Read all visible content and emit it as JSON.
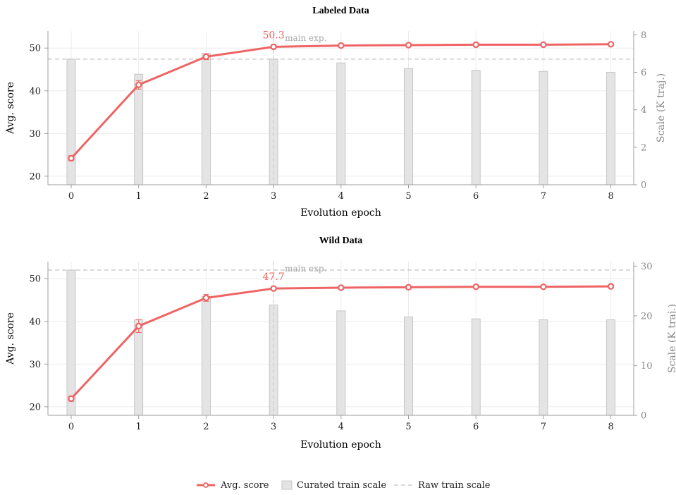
{
  "chart_data": [
    {
      "type": "bar",
      "title": "Labeled Data",
      "xlabel": "Evolution epoch",
      "ylabel": "Avg. score",
      "ylabel_right": "Scale (K traj.)",
      "categories": [
        0,
        1,
        2,
        3,
        4,
        5,
        6,
        7,
        8
      ],
      "ylim": [
        18,
        54
      ],
      "ylim_right": [
        0,
        8.2
      ],
      "yticks": [
        20,
        30,
        40,
        50
      ],
      "yticks_right": [
        0,
        2,
        4,
        6,
        8
      ],
      "series": [
        {
          "name": "Avg. score",
          "kind": "line",
          "axis": "left",
          "values": [
            24.2,
            41.4,
            48.0,
            50.3,
            50.6,
            50.7,
            50.8,
            50.8,
            50.9
          ],
          "errors": [
            0.6,
            1.0,
            0.7,
            0.5,
            0.3,
            0.3,
            0.3,
            0.3,
            0.3
          ]
        },
        {
          "name": "Curated train scale",
          "kind": "bar",
          "axis": "right",
          "values": [
            6.7,
            5.9,
            7.0,
            6.7,
            6.5,
            6.2,
            6.1,
            6.05,
            6.0
          ]
        },
        {
          "name": "Raw train scale",
          "kind": "hline",
          "axis": "right",
          "value": 6.7
        }
      ],
      "annotations": {
        "main_exp_epoch": 3,
        "main_exp_label": "main exp.",
        "peak_label": "50.3"
      },
      "grid": true
    },
    {
      "type": "bar",
      "title": "Wild Data",
      "xlabel": "Evolution epoch",
      "ylabel": "Avg. score",
      "ylabel_right": "Scale (K traj.)",
      "categories": [
        0,
        1,
        2,
        3,
        4,
        5,
        6,
        7,
        8
      ],
      "ylim": [
        18,
        54
      ],
      "ylim_right": [
        0,
        30.9
      ],
      "yticks": [
        20,
        30,
        40,
        50
      ],
      "yticks_right": [
        0,
        10,
        20,
        30
      ],
      "series": [
        {
          "name": "Avg. score",
          "kind": "line",
          "axis": "left",
          "values": [
            21.9,
            38.9,
            45.5,
            47.7,
            47.9,
            48.0,
            48.1,
            48.1,
            48.2
          ],
          "errors": [
            0.6,
            1.5,
            0.8,
            0.4,
            0.3,
            0.3,
            0.3,
            0.3,
            0.3
          ]
        },
        {
          "name": "Curated train scale",
          "kind": "bar",
          "axis": "right",
          "values": [
            29.2,
            19.2,
            23.9,
            22.2,
            21.0,
            19.8,
            19.4,
            19.2,
            19.2
          ]
        },
        {
          "name": "Raw train scale",
          "kind": "hline",
          "axis": "right",
          "value": 29.2
        }
      ],
      "annotations": {
        "main_exp_epoch": 3,
        "main_exp_label": "main exp.",
        "peak_label": "47.7"
      },
      "grid": true
    }
  ],
  "legend": {
    "position": "bottom",
    "items": [
      "Avg. score",
      "Curated train scale",
      "Raw train scale"
    ]
  },
  "colors": {
    "line": "#ef6464",
    "bar_fill": "#e4e4e4",
    "bar_stroke": "#bcbcbc",
    "raw_line": "#c4c4c4",
    "grid": "#ececec",
    "axis": "#9e9e9e"
  }
}
